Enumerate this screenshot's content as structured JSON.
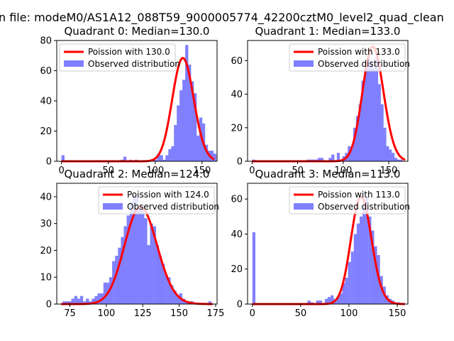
{
  "suptitle": "n file: modeM0/AS1A12_088T59_9000005774_42200cztM0_level2_quad_clean",
  "colors": {
    "curve": "#ff0000",
    "bars": "#8080ff",
    "axes": "#000000"
  },
  "chart_data": [
    {
      "type": "bar",
      "title": "Quadrant 0: Median=130.0",
      "xlim": [
        -5,
        166
      ],
      "ylim": [
        0,
        80
      ],
      "xticks": [
        0,
        50,
        100,
        150
      ],
      "yticks": [
        0,
        20,
        40,
        60,
        80
      ],
      "legend_position": "top-left",
      "bin_width": 3.3,
      "hist_x": [
        0,
        63,
        66,
        72,
        78,
        96,
        99,
        102,
        105,
        108,
        111,
        114,
        117,
        120,
        123,
        126,
        129,
        132,
        135,
        138,
        141,
        144,
        147,
        150,
        153,
        156,
        159,
        162
      ],
      "hist_y": [
        4,
        1,
        3,
        1,
        1,
        1,
        1,
        5,
        4,
        1,
        4,
        8,
        10,
        24,
        37,
        47,
        54,
        77,
        64,
        53,
        45,
        17,
        29,
        25,
        11,
        7,
        7,
        5
      ],
      "poisson_mu": 130.0,
      "poisson_scale": 1955,
      "series": [
        {
          "name": "Poission with 130.0",
          "kind": "line"
        },
        {
          "name": "Observed distribution",
          "kind": "hist"
        }
      ]
    },
    {
      "type": "bar",
      "title": "Quadrant 1: Median=133.0",
      "xlim": [
        -5,
        171
      ],
      "ylim": [
        0,
        72
      ],
      "xticks": [
        0,
        50,
        100,
        150
      ],
      "yticks": [
        0,
        20,
        40,
        60
      ],
      "legend_position": "top-right",
      "bin_width": 3.3,
      "hist_x": [
        0,
        60,
        63,
        66,
        69,
        72,
        75,
        84,
        87,
        93,
        99,
        102,
        105,
        108,
        111,
        114,
        117,
        120,
        123,
        126,
        129,
        132,
        135,
        138,
        141,
        144,
        147,
        150,
        153,
        156,
        159,
        162
      ],
      "hist_y": [
        1,
        1,
        1,
        1,
        1,
        2,
        2,
        2,
        4,
        5,
        3,
        5,
        9,
        8,
        20,
        27,
        34,
        48,
        56,
        62,
        60,
        56,
        62,
        46,
        34,
        20,
        9,
        7,
        5,
        2,
        1,
        1
      ],
      "poisson_mu": 133.0,
      "poisson_scale": 1978,
      "series": [
        {
          "name": "Poission with 133.0",
          "kind": "line"
        },
        {
          "name": "Observed distribution",
          "kind": "hist"
        }
      ]
    },
    {
      "type": "bar",
      "title": "Quadrant 2: Median=124.0",
      "xlim": [
        66,
        176
      ],
      "ylim": [
        0,
        45
      ],
      "xticks": [
        75,
        100,
        125,
        150,
        175
      ],
      "yticks": [
        0,
        10,
        20,
        30,
        40
      ],
      "legend_position": "top-right",
      "bin_width": 2.1,
      "hist_x": [
        70,
        72,
        74,
        76,
        78,
        80,
        82,
        84,
        86,
        88,
        90,
        92,
        94,
        96,
        98,
        100,
        102,
        104,
        106,
        108,
        110,
        112,
        114,
        116,
        118,
        120,
        122,
        124,
        126,
        128,
        130,
        132,
        134,
        136,
        138,
        140,
        142,
        144,
        146,
        148,
        150,
        152,
        154,
        156,
        158,
        160,
        170
      ],
      "hist_y": [
        1,
        1,
        1,
        2,
        3,
        2,
        3,
        1,
        2,
        1,
        2,
        3,
        4,
        4,
        8,
        8,
        10,
        16,
        18,
        21,
        25,
        29,
        33,
        38,
        41,
        40,
        36,
        37,
        32,
        22,
        30,
        29,
        22,
        18,
        15,
        11,
        10,
        7,
        5,
        3,
        4,
        2,
        1,
        1,
        1,
        0,
        1
      ],
      "poisson_mu": 124.0,
      "poisson_scale": 1010,
      "series": [
        {
          "name": "Poission with 124.0",
          "kind": "line"
        },
        {
          "name": "Observed distribution",
          "kind": "hist"
        }
      ]
    },
    {
      "type": "bar",
      "title": "Quadrant 3: Median=113.0",
      "xlim": [
        -5,
        161
      ],
      "ylim": [
        0,
        69
      ],
      "xticks": [
        0,
        50,
        100,
        150
      ],
      "yticks": [
        0,
        20,
        40,
        60
      ],
      "legend_position": "top-right",
      "bin_width": 3.1,
      "hist_x": [
        0,
        57,
        60,
        66,
        69,
        75,
        78,
        81,
        84,
        87,
        90,
        93,
        96,
        99,
        102,
        105,
        108,
        111,
        114,
        117,
        120,
        123,
        126,
        129,
        132,
        135,
        138,
        141,
        144,
        147,
        150
      ],
      "hist_y": [
        41,
        2,
        1,
        2,
        2,
        3,
        4,
        5,
        3,
        4,
        6,
        12,
        15,
        24,
        30,
        40,
        46,
        50,
        56,
        61,
        50,
        42,
        33,
        28,
        16,
        10,
        5,
        3,
        2,
        1,
        1
      ],
      "poisson_mu": 113.0,
      "poisson_scale": 1635,
      "series": [
        {
          "name": "Poission with 113.0",
          "kind": "line"
        },
        {
          "name": "Observed distribution",
          "kind": "hist"
        }
      ]
    }
  ]
}
